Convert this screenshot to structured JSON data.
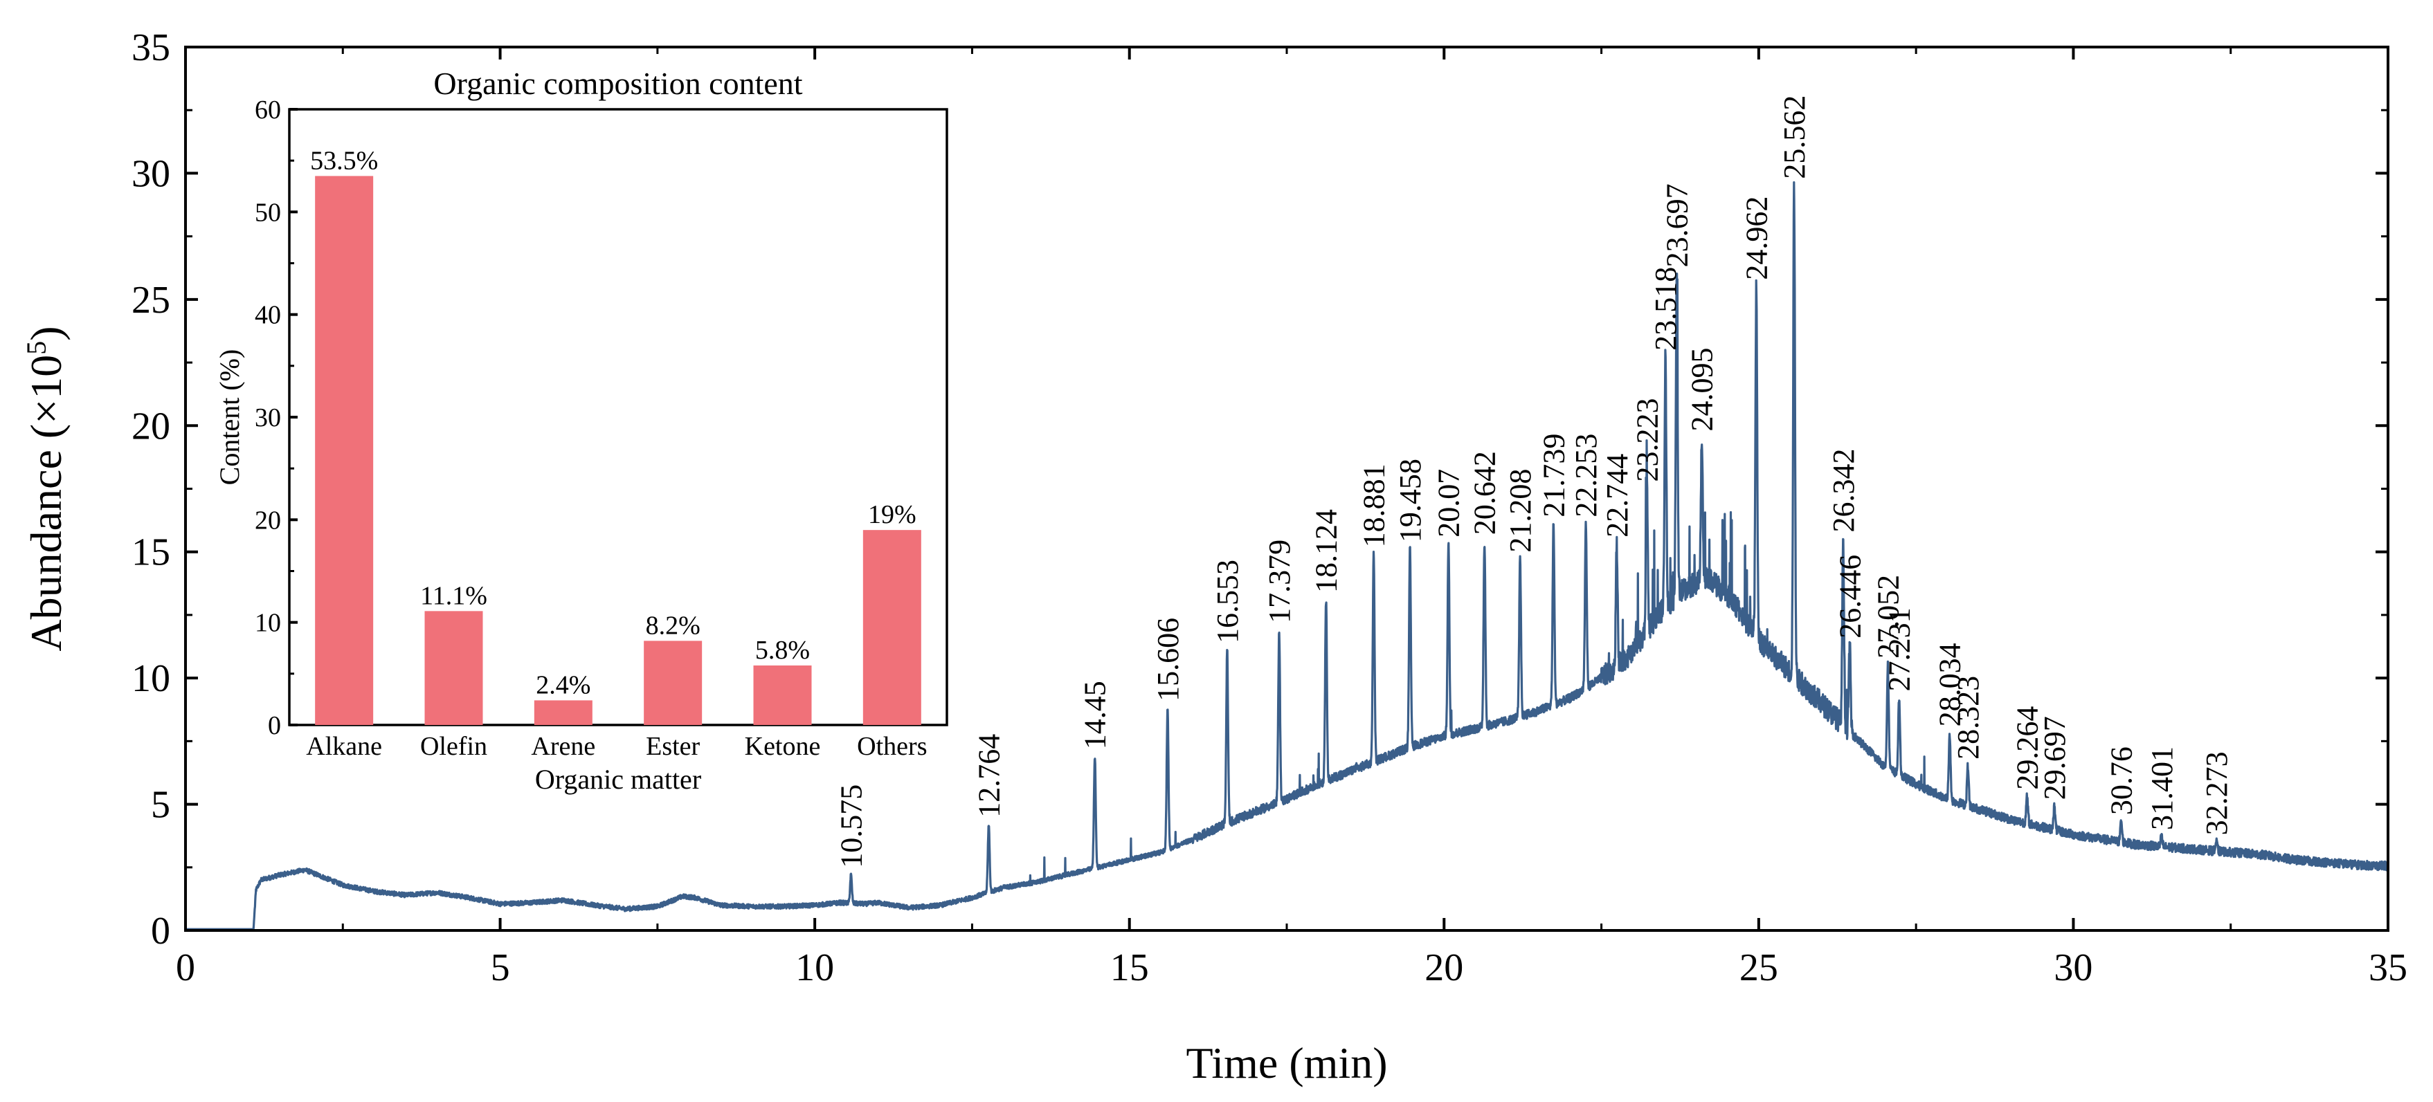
{
  "chart_data": [
    {
      "type": "line",
      "xlabel": "Time (min)",
      "ylabel": "Abundance (×10",
      "ylabel_sup": "5",
      "ylabel_close": ")",
      "xlim": [
        0,
        35
      ],
      "ylim": [
        0,
        35
      ],
      "x_ticks": [
        0,
        5,
        10,
        15,
        20,
        25,
        30,
        35
      ],
      "y_ticks": [
        0,
        5,
        10,
        15,
        20,
        25,
        30,
        35
      ],
      "line_color": "#3b5f8a",
      "baseline": [
        [
          0,
          0.05
        ],
        [
          1.0,
          0.05
        ],
        [
          1.08,
          0.05
        ],
        [
          1.12,
          1.6
        ],
        [
          1.2,
          2.0
        ],
        [
          1.5,
          2.2
        ],
        [
          1.9,
          2.4
        ],
        [
          2.1,
          2.2
        ],
        [
          2.5,
          1.8
        ],
        [
          3.0,
          1.55
        ],
        [
          3.5,
          1.4
        ],
        [
          4.0,
          1.5
        ],
        [
          4.5,
          1.3
        ],
        [
          5.0,
          1.05
        ],
        [
          5.5,
          1.1
        ],
        [
          6.0,
          1.2
        ],
        [
          6.5,
          1.0
        ],
        [
          7.0,
          0.85
        ],
        [
          7.5,
          0.95
        ],
        [
          7.9,
          1.35
        ],
        [
          8.1,
          1.3
        ],
        [
          8.5,
          1.0
        ],
        [
          9.0,
          0.95
        ],
        [
          9.5,
          0.95
        ],
        [
          10.0,
          1.0
        ],
        [
          10.4,
          1.1
        ],
        [
          10.8,
          1.05
        ],
        [
          11.0,
          1.1
        ],
        [
          11.5,
          0.9
        ],
        [
          12.0,
          1.0
        ],
        [
          12.5,
          1.3
        ],
        [
          13.0,
          1.7
        ],
        [
          13.5,
          1.9
        ],
        [
          14.0,
          2.2
        ],
        [
          14.5,
          2.5
        ],
        [
          15.0,
          2.8
        ],
        [
          15.5,
          3.1
        ],
        [
          16.0,
          3.6
        ],
        [
          16.5,
          4.2
        ],
        [
          17.0,
          4.7
        ],
        [
          17.5,
          5.2
        ],
        [
          18.0,
          5.8
        ],
        [
          18.5,
          6.3
        ],
        [
          19.0,
          6.8
        ],
        [
          19.5,
          7.3
        ],
        [
          20.0,
          7.7
        ],
        [
          20.5,
          8.0
        ],
        [
          21.0,
          8.3
        ],
        [
          21.5,
          8.7
        ],
        [
          22.0,
          9.2
        ],
        [
          22.5,
          10.0
        ],
        [
          23.0,
          11.0
        ],
        [
          23.4,
          12.5
        ],
        [
          23.8,
          13.5
        ],
        [
          24.2,
          14.0
        ],
        [
          24.6,
          13.0
        ],
        [
          25.0,
          11.5
        ],
        [
          25.4,
          10.5
        ],
        [
          25.8,
          9.5
        ],
        [
          26.2,
          8.5
        ],
        [
          26.6,
          7.5
        ],
        [
          27.0,
          6.5
        ],
        [
          27.5,
          5.8
        ],
        [
          28.0,
          5.2
        ],
        [
          28.5,
          4.8
        ],
        [
          29.0,
          4.4
        ],
        [
          29.5,
          4.1
        ],
        [
          30.0,
          3.8
        ],
        [
          30.5,
          3.6
        ],
        [
          31.0,
          3.4
        ],
        [
          31.5,
          3.3
        ],
        [
          32.0,
          3.2
        ],
        [
          32.5,
          3.1
        ],
        [
          33.0,
          3.0
        ],
        [
          33.5,
          2.8
        ],
        [
          34.0,
          2.7
        ],
        [
          34.5,
          2.6
        ],
        [
          35.0,
          2.55
        ]
      ],
      "peaks": [
        {
          "x": 10.575,
          "y": 2.2,
          "label": "10.575"
        },
        {
          "x": 12.764,
          "y": 4.2,
          "label": "12.764"
        },
        {
          "x": 14.45,
          "y": 6.9,
          "label": "14.45"
        },
        {
          "x": 15.606,
          "y": 8.8,
          "label": "15.606"
        },
        {
          "x": 16.553,
          "y": 11.1,
          "label": "16.553"
        },
        {
          "x": 17.379,
          "y": 11.9,
          "label": "17.379"
        },
        {
          "x": 18.124,
          "y": 13.1,
          "label": "18.124"
        },
        {
          "x": 18.881,
          "y": 14.9,
          "label": "18.881"
        },
        {
          "x": 19.458,
          "y": 15.1,
          "label": "19.458"
        },
        {
          "x": 20.07,
          "y": 15.3,
          "label": "20.07"
        },
        {
          "x": 20.642,
          "y": 15.4,
          "label": "20.642"
        },
        {
          "x": 21.208,
          "y": 14.7,
          "label": "21.208"
        },
        {
          "x": 21.739,
          "y": 16.1,
          "label": "21.739"
        },
        {
          "x": 22.253,
          "y": 16.1,
          "label": "22.253"
        },
        {
          "x": 22.744,
          "y": 15.3,
          "label": "22.744"
        },
        {
          "x": 23.223,
          "y": 17.5,
          "label": "23.223"
        },
        {
          "x": 23.518,
          "y": 22.7,
          "label": "23.518"
        },
        {
          "x": 23.697,
          "y": 26.0,
          "label": "23.697"
        },
        {
          "x": 24.095,
          "y": 19.5,
          "label": "24.095"
        },
        {
          "x": 24.962,
          "y": 25.5,
          "label": "24.962"
        },
        {
          "x": 25.562,
          "y": 29.5,
          "label": "25.562"
        },
        {
          "x": 26.342,
          "y": 15.5,
          "label": "26.342"
        },
        {
          "x": 26.446,
          "y": 11.3,
          "label": "26.446"
        },
        {
          "x": 27.052,
          "y": 10.5,
          "label": "27.052"
        },
        {
          "x": 27.231,
          "y": 9.2,
          "label": "27.231"
        },
        {
          "x": 28.034,
          "y": 7.8,
          "label": "28.034"
        },
        {
          "x": 28.323,
          "y": 6.5,
          "label": "28.323"
        },
        {
          "x": 29.264,
          "y": 5.3,
          "label": "29.264"
        },
        {
          "x": 29.697,
          "y": 4.9,
          "label": "29.697"
        },
        {
          "x": 30.76,
          "y": 4.3,
          "label": "30.76"
        },
        {
          "x": 31.401,
          "y": 3.7,
          "label": "31.401"
        },
        {
          "x": 32.273,
          "y": 3.5,
          "label": "32.273"
        }
      ]
    },
    {
      "type": "bar",
      "title": "Organic composition content",
      "xlabel": "Organic matter",
      "ylabel": "Content (%)",
      "ylim": [
        0,
        60
      ],
      "y_ticks": [
        0,
        10,
        20,
        30,
        40,
        50,
        60
      ],
      "categories": [
        "Alkane",
        "Olefin",
        "Arene",
        "Ester",
        "Ketone",
        "Others"
      ],
      "values": [
        53.5,
        11.1,
        2.4,
        8.2,
        5.8,
        19
      ],
      "value_labels": [
        "53.5%",
        "11.1%",
        "2.4%",
        "8.2%",
        "5.8%",
        "19%"
      ],
      "bar_color": "#f07179"
    }
  ]
}
